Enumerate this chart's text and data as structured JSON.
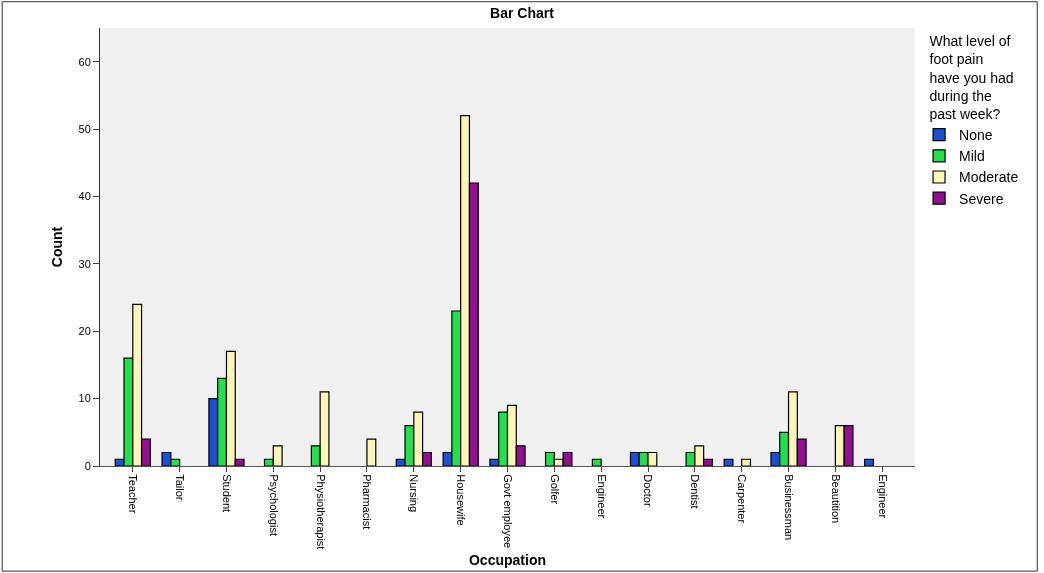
{
  "chart_data": {
    "type": "bar",
    "title": "Bar Chart",
    "xlabel": "Occupation",
    "ylabel": "Count",
    "legend_title": "What level of foot pain have you had during the past week?",
    "categories": [
      "Teacher",
      "Tailor",
      "Student",
      "Psychologist",
      "Physiotherapist",
      "Pharmacist",
      "Nursing",
      "Housewife",
      "Govt employee",
      "Golfer",
      "Engineer",
      "Doctor",
      "Dentist",
      "Carpenter",
      "Businessman",
      "Beautition",
      "Engineer"
    ],
    "series": [
      {
        "name": "None",
        "color": "#1a4fd6",
        "values": [
          1,
          2,
          10,
          null,
          null,
          null,
          1,
          2,
          1,
          null,
          null,
          2,
          null,
          1,
          2,
          null,
          1
        ]
      },
      {
        "name": "Mild",
        "color": "#22e04a",
        "values": [
          16,
          1,
          13,
          1,
          3,
          null,
          6,
          23,
          8,
          2,
          1,
          2,
          2,
          null,
          5,
          null,
          null
        ]
      },
      {
        "name": "Moderate",
        "color": "#fbf5b8",
        "values": [
          24,
          null,
          17,
          3,
          11,
          4,
          8,
          52,
          9,
          1,
          null,
          2,
          3,
          1,
          11,
          6,
          null
        ]
      },
      {
        "name": "Severe",
        "color": "#930e93",
        "values": [
          4,
          null,
          1,
          null,
          null,
          null,
          2,
          42,
          3,
          2,
          null,
          null,
          1,
          null,
          4,
          6,
          null
        ]
      }
    ],
    "ylim": [
      0,
      65
    ],
    "yticks": [
      0,
      10,
      20,
      30,
      40,
      50,
      60
    ],
    "grid": false,
    "legend": "right"
  }
}
